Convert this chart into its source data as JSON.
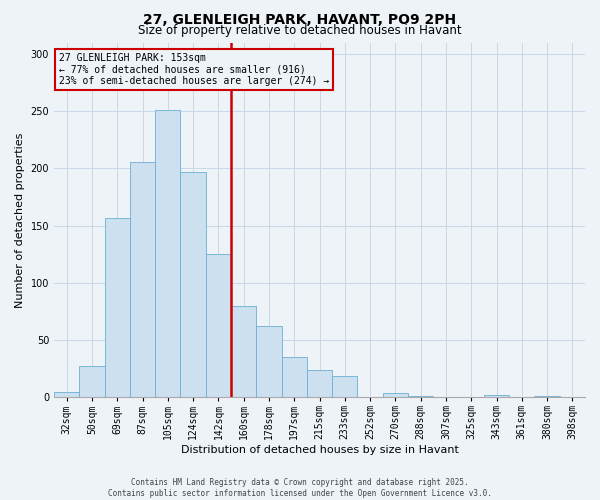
{
  "title": "27, GLENLEIGH PARK, HAVANT, PO9 2PH",
  "subtitle": "Size of property relative to detached houses in Havant",
  "xlabel": "Distribution of detached houses by size in Havant",
  "ylabel": "Number of detached properties",
  "bar_labels": [
    "32sqm",
    "50sqm",
    "69sqm",
    "87sqm",
    "105sqm",
    "124sqm",
    "142sqm",
    "160sqm",
    "178sqm",
    "197sqm",
    "215sqm",
    "233sqm",
    "252sqm",
    "270sqm",
    "288sqm",
    "307sqm",
    "325sqm",
    "343sqm",
    "361sqm",
    "380sqm",
    "398sqm"
  ],
  "bar_values": [
    5,
    27,
    157,
    206,
    251,
    197,
    125,
    80,
    62,
    35,
    24,
    19,
    0,
    4,
    1,
    0,
    0,
    2,
    0,
    1,
    0
  ],
  "bar_color": "#cce0f0",
  "bar_edgecolor": "#6baed6",
  "vline_color": "#cc0000",
  "vline_pos": 7.0,
  "ylim": [
    0,
    310
  ],
  "yticks": [
    0,
    50,
    100,
    150,
    200,
    250,
    300
  ],
  "annotation_title": "27 GLENLEIGH PARK: 153sqm",
  "annotation_line1": "← 77% of detached houses are smaller (916)",
  "annotation_line2": "23% of semi-detached houses are larger (274) →",
  "annotation_box_color": "#cc0000",
  "footer_line1": "Contains HM Land Registry data © Crown copyright and database right 2025.",
  "footer_line2": "Contains public sector information licensed under the Open Government Licence v3.0.",
  "background_color": "#eef3f8",
  "grid_color": "#c8d8e8",
  "title_fontsize": 10,
  "subtitle_fontsize": 8.5,
  "ylabel_fontsize": 8,
  "xlabel_fontsize": 8,
  "tick_fontsize": 7,
  "annot_fontsize": 7,
  "footer_fontsize": 5.5
}
